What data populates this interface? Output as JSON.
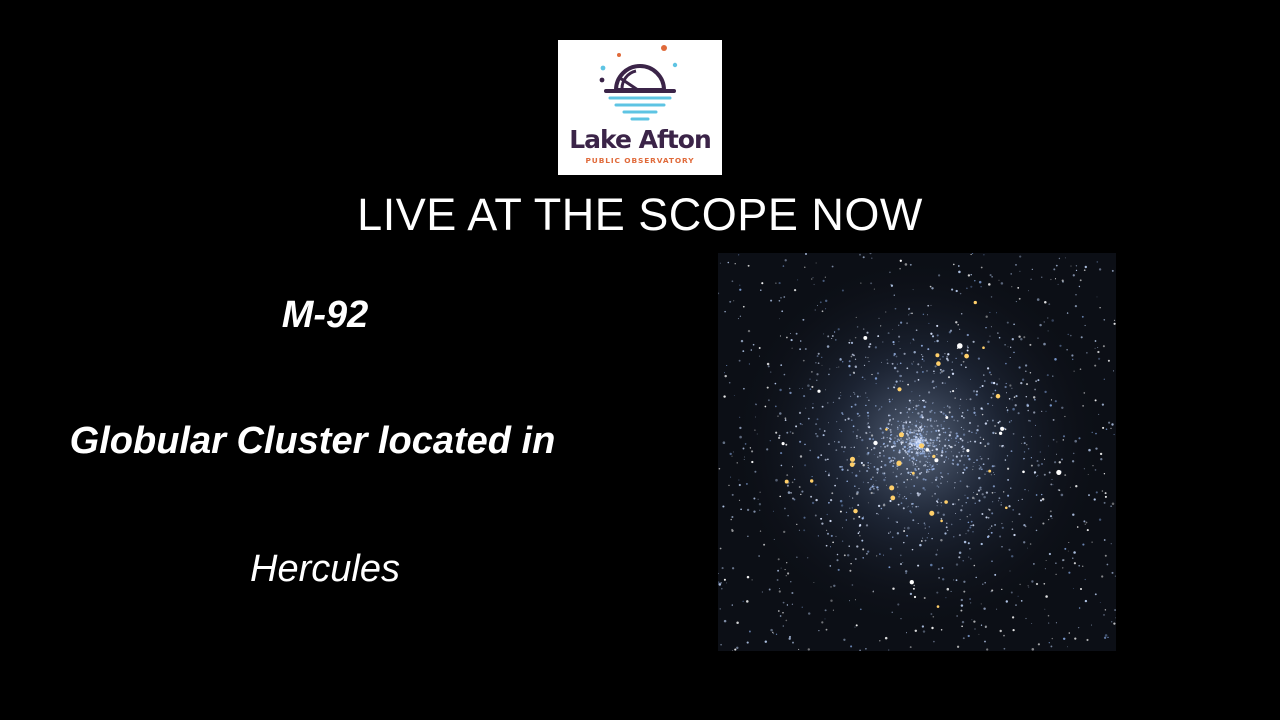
{
  "logo": {
    "title": "Lake Afton",
    "subtitle": "PUBLIC OBSERVATORY",
    "colors": {
      "dome": "#3b2448",
      "water": "#5ec4e3",
      "accent": "#e06a3a"
    }
  },
  "headline": "LIVE AT THE SCOPE NOW",
  "object": {
    "name": "M-92",
    "description": "Globular Cluster located in",
    "constellation": "Hercules"
  },
  "colors": {
    "background": "#000000",
    "text": "#ffffff"
  }
}
